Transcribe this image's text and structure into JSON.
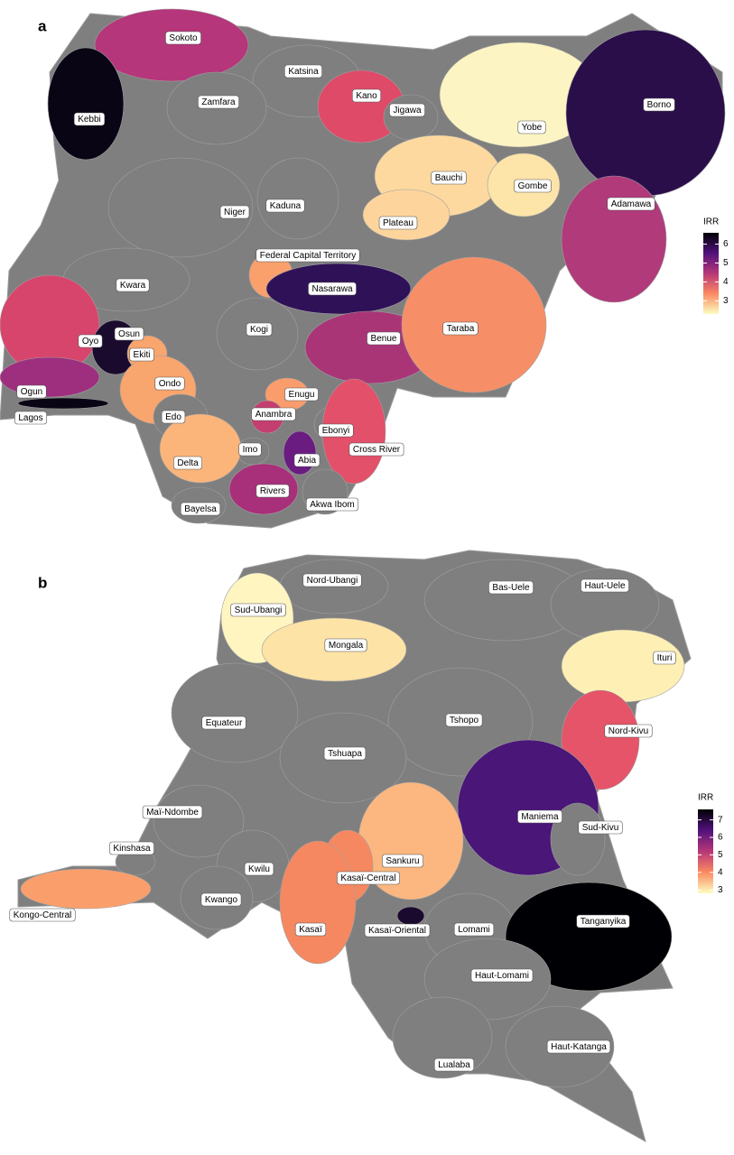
{
  "panels": [
    {
      "label": "a",
      "regions": [
        {
          "name": "Sokoto",
          "color": "#b5367a"
        },
        {
          "name": "Katsina",
          "color": "#7f7f7f"
        },
        {
          "name": "Zamfara",
          "color": "#7f7f7f"
        },
        {
          "name": "Kebbi",
          "color": "#0a0514"
        },
        {
          "name": "Kano",
          "color": "#df4a68"
        },
        {
          "name": "Jigawa",
          "color": "#7f7f7f"
        },
        {
          "name": "Yobe",
          "color": "#fcf5c3"
        },
        {
          "name": "Borno",
          "color": "#2a0e4a"
        },
        {
          "name": "Bauchi",
          "color": "#fdd9a0"
        },
        {
          "name": "Gombe",
          "color": "#fde4a8"
        },
        {
          "name": "Adamawa",
          "color": "#b13a7a"
        },
        {
          "name": "Niger",
          "color": "#7f7f7f"
        },
        {
          "name": "Kaduna",
          "color": "#7f7f7f"
        },
        {
          "name": "Plateau",
          "color": "#fdd59c"
        },
        {
          "name": "Federal Capital Territory",
          "color": "#f9a06c"
        },
        {
          "name": "Kwara",
          "color": "#7f7f7f"
        },
        {
          "name": "Nasarawa",
          "color": "#2f1158"
        },
        {
          "name": "Oyo",
          "color": "#d8456c"
        },
        {
          "name": "Osun",
          "color": "#1a0b2e"
        },
        {
          "name": "Ekiti",
          "color": "#f9a56e"
        },
        {
          "name": "Kogi",
          "color": "#7f7f7f"
        },
        {
          "name": "Benue",
          "color": "#a93577"
        },
        {
          "name": "Taraba",
          "color": "#f68f67"
        },
        {
          "name": "Ondo",
          "color": "#f9a56e"
        },
        {
          "name": "Ogun",
          "color": "#9e2f7f"
        },
        {
          "name": "Lagos",
          "color": "#0a0514"
        },
        {
          "name": "Edo",
          "color": "#7f7f7f"
        },
        {
          "name": "Enugu",
          "color": "#fa9c6b"
        },
        {
          "name": "Anambra",
          "color": "#c43e6f"
        },
        {
          "name": "Ebonyi",
          "color": "#7f7f7f"
        },
        {
          "name": "Cross River",
          "color": "#e2506a"
        },
        {
          "name": "Imo",
          "color": "#7f7f7f"
        },
        {
          "name": "Abia",
          "color": "#6a1c81"
        },
        {
          "name": "Delta",
          "color": "#fbb57a"
        },
        {
          "name": "Rivers",
          "color": "#a8307a"
        },
        {
          "name": "Akwa Ibom",
          "color": "#7f7f7f"
        },
        {
          "name": "Bayelsa",
          "color": "#7f7f7f"
        }
      ],
      "legend": {
        "title": "IRR",
        "ticks": [
          3,
          4,
          5,
          6
        ],
        "lim": [
          2.3,
          6.6
        ],
        "colors": [
          "#fcfdbf",
          "#fc8961",
          "#b73779",
          "#51127c",
          "#000004"
        ]
      }
    },
    {
      "label": "b",
      "regions": [
        {
          "name": "Nord-Ubangi",
          "color": "#7f7f7f"
        },
        {
          "name": "Sud-Ubangi",
          "color": "#fef5c0"
        },
        {
          "name": "Bas-Uele",
          "color": "#7f7f7f"
        },
        {
          "name": "Haut-Uele",
          "color": "#7f7f7f"
        },
        {
          "name": "Mongala",
          "color": "#fde3a5"
        },
        {
          "name": "Ituri",
          "color": "#fef0b4"
        },
        {
          "name": "Equateur",
          "color": "#7f7f7f"
        },
        {
          "name": "Tshopo",
          "color": "#7f7f7f"
        },
        {
          "name": "Nord-Kivu",
          "color": "#e55468"
        },
        {
          "name": "Tshuapa",
          "color": "#7f7f7f"
        },
        {
          "name": "Maniema",
          "color": "#4a1678"
        },
        {
          "name": "Sud-Kivu",
          "color": "#7f7f7f"
        },
        {
          "name": "Maï-Ndombe",
          "color": "#7f7f7f"
        },
        {
          "name": "Kinshasa",
          "color": "#7f7f7f"
        },
        {
          "name": "Kwilu",
          "color": "#7f7f7f"
        },
        {
          "name": "Sankuru",
          "color": "#fbb77f"
        },
        {
          "name": "Kongo-Central",
          "color": "#fa9f6c"
        },
        {
          "name": "Kwango",
          "color": "#7f7f7f"
        },
        {
          "name": "Kasaï-Central",
          "color": "#f58860"
        },
        {
          "name": "Kasaï",
          "color": "#f58860"
        },
        {
          "name": "Kasaï-Oriental",
          "color": "#1a0b2e"
        },
        {
          "name": "Lomami",
          "color": "#7f7f7f"
        },
        {
          "name": "Tanganyika",
          "color": "#000004"
        },
        {
          "name": "Haut-Lomami",
          "color": "#7f7f7f"
        },
        {
          "name": "Haut-Katanga",
          "color": "#7f7f7f"
        },
        {
          "name": "Lualaba",
          "color": "#7f7f7f"
        }
      ],
      "legend": {
        "title": "IRR",
        "ticks": [
          3,
          4,
          5,
          6,
          7
        ],
        "lim": [
          2.8,
          7.6
        ],
        "colors": [
          "#fcfdbf",
          "#fc8961",
          "#b73779",
          "#51127c",
          "#000004"
        ]
      }
    }
  ]
}
